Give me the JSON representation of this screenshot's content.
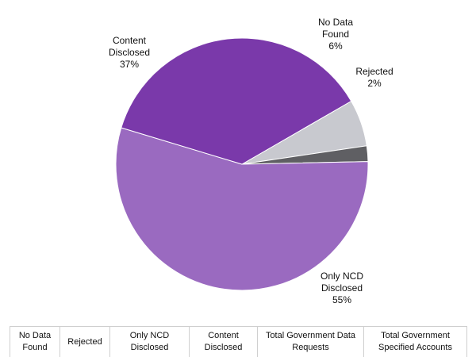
{
  "chart_data": {
    "type": "pie",
    "colors": {
      "no_data_found": "#c8c9cf",
      "rejected": "#5f5f63",
      "only_ncd_disclosed": "#9a6ac0",
      "content_disclosed": "#7a39aa"
    },
    "slices": [
      {
        "key": "no_data_found",
        "lines": [
          "No Data",
          "Found"
        ],
        "percent_label": "6%",
        "value": 6
      },
      {
        "key": "rejected",
        "lines": [
          "Rejected"
        ],
        "percent_label": "2%",
        "value": 2
      },
      {
        "key": "only_ncd_disclosed",
        "lines": [
          "Only NCD",
          "Disclosed"
        ],
        "percent_label": "55%",
        "value": 55
      },
      {
        "key": "content_disclosed",
        "lines": [
          "Content",
          "Disclosed"
        ],
        "percent_label": "37%",
        "value": 37
      }
    ]
  },
  "table": {
    "headers": [
      [
        "No Data",
        "Found"
      ],
      [
        "Rejected"
      ],
      [
        "Only NCD",
        "Disclosed"
      ],
      [
        "Content",
        "Disclosed"
      ],
      [
        "Total Government Data",
        "Requests"
      ],
      [
        "Total Government",
        "Specified Accounts"
      ]
    ]
  }
}
